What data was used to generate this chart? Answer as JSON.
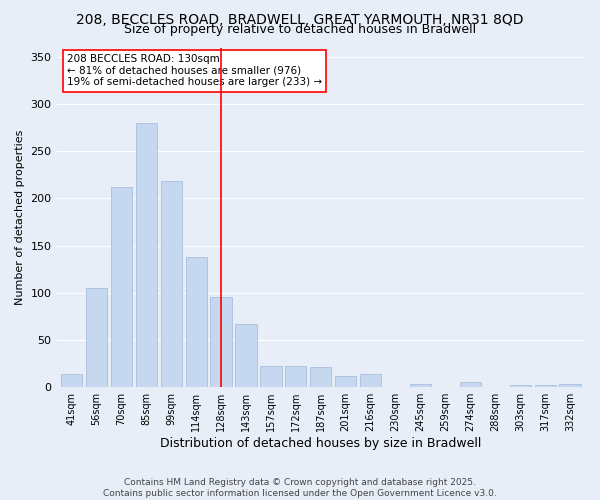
{
  "title_line1": "208, BECCLES ROAD, BRADWELL, GREAT YARMOUTH, NR31 8QD",
  "title_line2": "Size of property relative to detached houses in Bradwell",
  "xlabel": "Distribution of detached houses by size in Bradwell",
  "ylabel": "Number of detached properties",
  "categories": [
    "41sqm",
    "56sqm",
    "70sqm",
    "85sqm",
    "99sqm",
    "114sqm",
    "128sqm",
    "143sqm",
    "157sqm",
    "172sqm",
    "187sqm",
    "201sqm",
    "216sqm",
    "230sqm",
    "245sqm",
    "259sqm",
    "274sqm",
    "288sqm",
    "303sqm",
    "317sqm",
    "332sqm"
  ],
  "values": [
    14,
    105,
    212,
    280,
    218,
    138,
    96,
    67,
    23,
    22,
    21,
    12,
    14,
    0,
    3,
    0,
    5,
    0,
    2,
    2,
    3
  ],
  "bar_color": "#c5d8f0",
  "bar_edge_color": "#a0b8d8",
  "annotation_line_x": "128sqm",
  "annotation_line_color": "red",
  "annotation_text": "208 BECCLES ROAD: 130sqm\n← 81% of detached houses are smaller (976)\n19% of semi-detached houses are larger (233) →",
  "annotation_box_color": "white",
  "annotation_box_edge_color": "red",
  "ylim": [
    0,
    360
  ],
  "yticks": [
    0,
    50,
    100,
    150,
    200,
    250,
    300,
    350
  ],
  "background_color": "#e8eef8",
  "footer_text": "Contains HM Land Registry data © Crown copyright and database right 2025.\nContains public sector information licensed under the Open Government Licence v3.0.",
  "title_fontsize": 10,
  "subtitle_fontsize": 9,
  "annotation_fontsize": 7.5,
  "footer_fontsize": 6.5
}
